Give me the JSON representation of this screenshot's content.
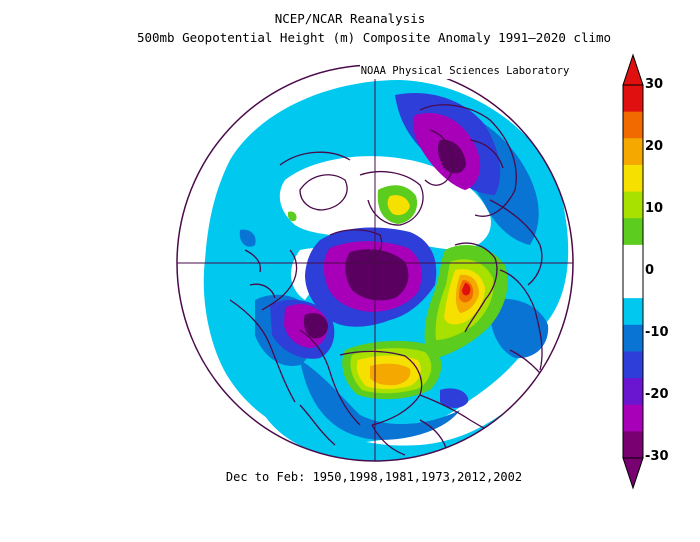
{
  "title_line1": "NCEP/NCAR Reanalysis",
  "title_line2": "500mb Geopotential Height (m) Composite Anomaly 1991–2020 climo",
  "credit": "NOAA Physical Sciences Laboratory",
  "footer": "Dec to Feb: 1950,1998,1981,1973,2012,2002",
  "colorbar": {
    "labels": [
      "30",
      "20",
      "10",
      "0",
      "-10",
      "-20",
      "-30"
    ],
    "colors": [
      "#e01010",
      "#f06a00",
      "#f5a800",
      "#f5e000",
      "#a8e000",
      "#5ccc1e",
      "#ffffff",
      "#ffffff",
      "#00c8ef",
      "#0a74d4",
      "#2d3fd8",
      "#6a16d0",
      "#a800b8",
      "#780070"
    ]
  },
  "map_colors": {
    "ocean_bg": "#ffffff",
    "coast": "#4a0a4a",
    "light_blue": "#00c8ef",
    "mid_blue": "#0a74d4",
    "deep_blue": "#2d3fd8",
    "violet": "#6a16d0",
    "magenta": "#a800b8",
    "deep_purple": "#5a0060",
    "green": "#5ccc1e",
    "yellow_green": "#a8e000",
    "yellow": "#f5e000",
    "orange": "#f5a800",
    "dark_orange": "#f06a00",
    "red": "#e01010"
  }
}
